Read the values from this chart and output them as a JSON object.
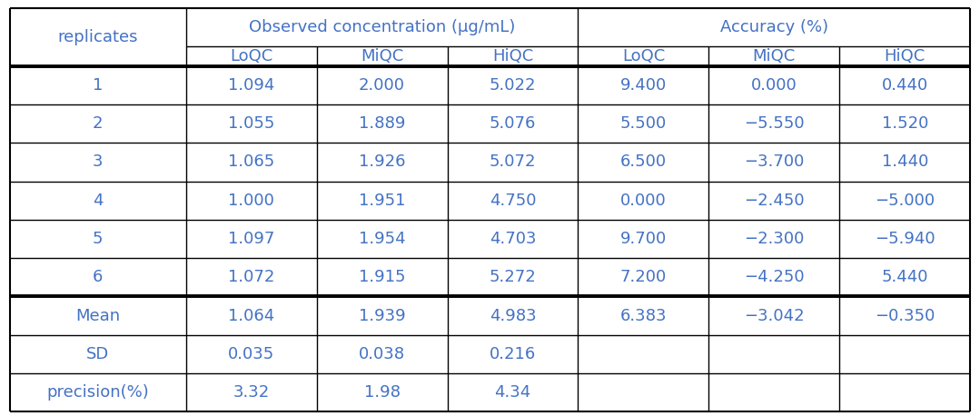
{
  "obs_header": "Observed concentration (μg/mL)",
  "acc_header": "Accuracy (%)",
  "rep_header": "replicates",
  "sub_headers": [
    "LoQC",
    "MiQC",
    "HiQC",
    "LoQC",
    "MiQC",
    "HiQC"
  ],
  "rows": [
    [
      "1",
      "1.094",
      "2.000",
      "5.022",
      "9.400",
      "0.000",
      "0.440"
    ],
    [
      "2",
      "1.055",
      "1.889",
      "5.076",
      "5.500",
      "−5.550",
      "1.520"
    ],
    [
      "3",
      "1.065",
      "1.926",
      "5.072",
      "6.500",
      "−3.700",
      "1.440"
    ],
    [
      "4",
      "1.000",
      "1.951",
      "4.750",
      "0.000",
      "−2.450",
      "−5.000"
    ],
    [
      "5",
      "1.097",
      "1.954",
      "4.703",
      "9.700",
      "−2.300",
      "−5.940"
    ],
    [
      "6",
      "1.072",
      "1.915",
      "5.272",
      "7.200",
      "−4.250",
      "5.440"
    ]
  ],
  "summary_rows": [
    [
      "Mean",
      "1.064",
      "1.939",
      "4.983",
      "6.383",
      "−3.042",
      "−0.350"
    ],
    [
      "SD",
      "0.035",
      "0.038",
      "0.216",
      "",
      "",
      ""
    ],
    [
      "precision(%)",
      "3.32",
      "1.98",
      "4.34",
      "",
      "",
      ""
    ]
  ],
  "text_color": "#4472C4",
  "bg_color": "#FFFFFF",
  "font_size": 13,
  "col_widths_raw": [
    1.55,
    1.15,
    1.15,
    1.15,
    1.15,
    1.15,
    1.15
  ],
  "row_heights_raw": [
    1.0,
    0.5,
    1.0,
    1.0,
    1.0,
    1.0,
    1.0,
    1.0,
    1.0,
    1.0,
    1.0
  ],
  "thin_lw": 1.0,
  "thick_lw": 2.8,
  "outer_lw": 1.5
}
